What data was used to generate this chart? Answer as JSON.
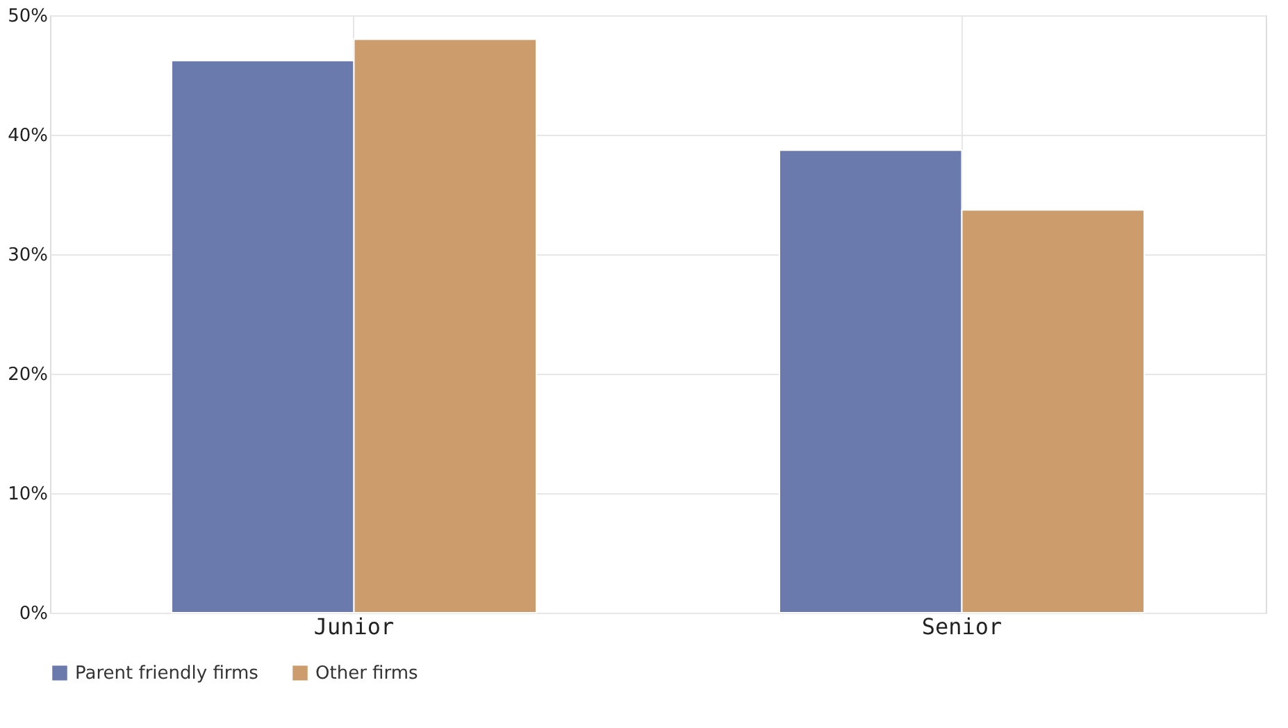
{
  "chart_data": {
    "type": "bar",
    "categories": [
      "Junior",
      "Senior"
    ],
    "series": [
      {
        "name": "Parent friendly firms",
        "color": "#6b7aad",
        "values": [
          46.2,
          38.7
        ]
      },
      {
        "name": "Other firms",
        "color": "#cc9c6c",
        "values": [
          48.0,
          33.7
        ]
      }
    ],
    "ylim": [
      0,
      50
    ],
    "yticks": [
      {
        "value": 0,
        "label": "0%"
      },
      {
        "value": 10,
        "label": "10%"
      },
      {
        "value": 20,
        "label": "20%"
      },
      {
        "value": 30,
        "label": "30%"
      },
      {
        "value": 40,
        "label": "40%"
      },
      {
        "value": 50,
        "label": "50%"
      }
    ],
    "grid": true,
    "legend": "bottom"
  }
}
